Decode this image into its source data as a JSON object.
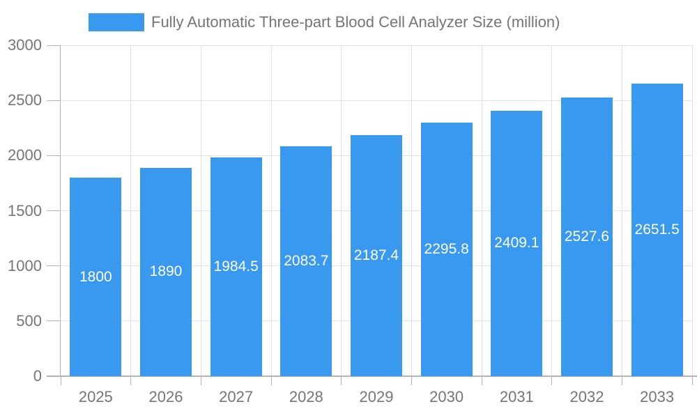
{
  "legend": {
    "label": "Fully Automatic Three-part Blood Cell Analyzer Size (million)"
  },
  "colors": {
    "bar": "#3999EF",
    "axis": "#b3b3b3",
    "grid": "#e1e1e1",
    "tick_text": "#757575",
    "bar_label_text": "#ffffff",
    "background": "#ffffff"
  },
  "chart_data": {
    "type": "bar",
    "title": "Fully Automatic Three-part Blood Cell Analyzer Size (million)",
    "categories": [
      "2025",
      "2026",
      "2027",
      "2028",
      "2029",
      "2030",
      "2031",
      "2032",
      "2033"
    ],
    "values": [
      1800,
      1890,
      1984.5,
      2083.7,
      2187.4,
      2295.8,
      2409.1,
      2527.6,
      2651.5
    ],
    "value_labels": [
      "1800",
      "1890",
      "1984.5",
      "2083.7",
      "2187.4",
      "2295.8",
      "2409.1",
      "2527.6",
      "2651.5"
    ],
    "xlabel": "",
    "ylabel": "",
    "ylim": [
      0,
      3000
    ],
    "yticks": [
      0,
      500,
      1000,
      1500,
      2000,
      2500,
      3000
    ],
    "grid": true,
    "legend_position": "top",
    "value_label_position": "inside-center"
  }
}
